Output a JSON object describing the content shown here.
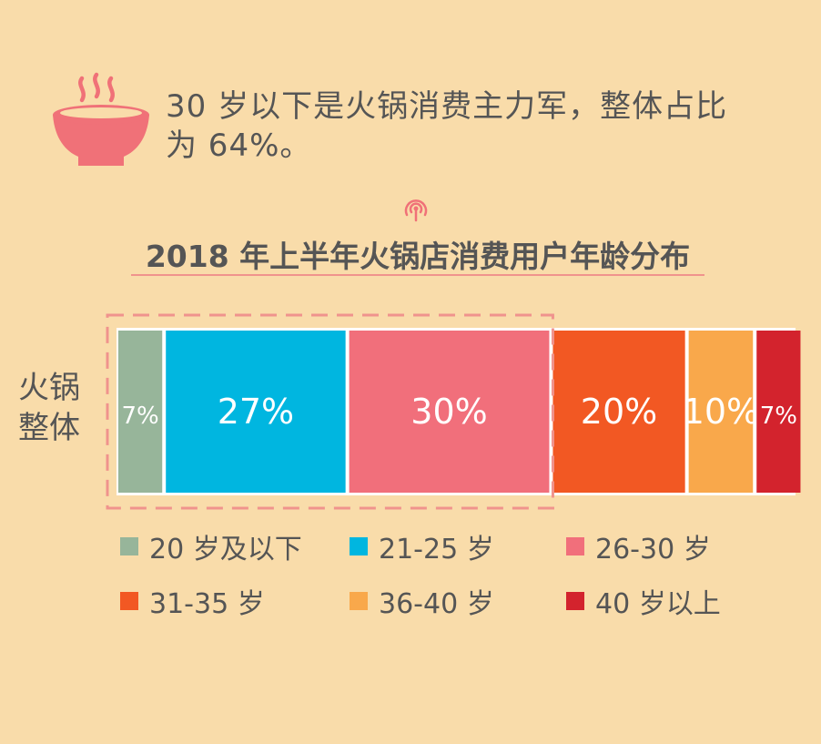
{
  "headline": {
    "line1": "30 岁以下是火锅消费主力军，整体占比",
    "line2": "为 64%。"
  },
  "icons": {
    "headline": "steaming-hotpot-icon",
    "title": "radio-badge-icon"
  },
  "colors": {
    "background": "#f9dcaa",
    "bowl": "#f07178",
    "highlight": "#f0938d"
  },
  "chart_data": {
    "type": "bar",
    "orientation": "horizontal",
    "stacked": true,
    "title": "2018 年上半年火锅店消费用户年龄分布",
    "category_label": {
      "line1": "火锅",
      "line2": "整体"
    },
    "categories": [
      "火锅整体"
    ],
    "x_range": [
      0,
      100
    ],
    "legend_position": "bottom",
    "highlighted_series": [
      "20 岁及以下",
      "21-25 岁",
      "26-30 岁"
    ],
    "series": [
      {
        "name": "20 岁及以下",
        "value": 7,
        "label": "7%",
        "color": "#97b59a"
      },
      {
        "name": "21-25 岁",
        "value": 27,
        "label": "27%",
        "color": "#00b6e0"
      },
      {
        "name": "26-30 岁",
        "value": 30,
        "label": "30%",
        "color": "#f16f7b"
      },
      {
        "name": "31-35 岁",
        "value": 20,
        "label": "20%",
        "color": "#f25823"
      },
      {
        "name": "36-40 岁",
        "value": 10,
        "label": "10%",
        "color": "#f9a84b"
      },
      {
        "name": "40 岁以上",
        "value": 7,
        "label": "7%",
        "color": "#d3232d"
      }
    ]
  }
}
